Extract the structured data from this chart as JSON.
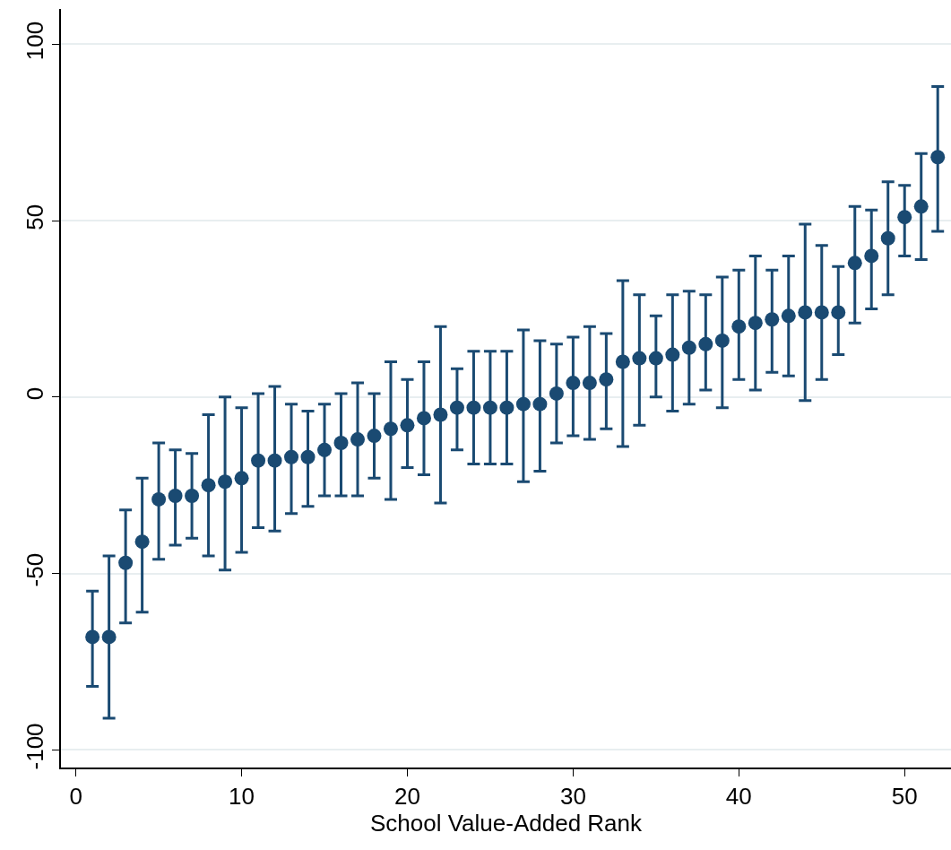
{
  "chart_data": {
    "type": "scatter",
    "xlabel": "School Value-Added Rank",
    "x": [
      1,
      2,
      3,
      4,
      5,
      6,
      7,
      8,
      9,
      10,
      11,
      12,
      13,
      14,
      15,
      16,
      17,
      18,
      19,
      20,
      21,
      22,
      23,
      24,
      25,
      26,
      27,
      28,
      29,
      30,
      31,
      32,
      33,
      34,
      35,
      36,
      37,
      38,
      39,
      40,
      41,
      42,
      43,
      44,
      45,
      46,
      47,
      48,
      49,
      50,
      51,
      52
    ],
    "values": [
      -68,
      -68,
      -47,
      -41,
      -29,
      -28,
      -28,
      -25,
      -24,
      -23,
      -18,
      -18,
      -17,
      -17,
      -15,
      -13,
      -12,
      -11,
      -9,
      -8,
      -6,
      -5,
      -3,
      -3,
      -3,
      -3,
      -2,
      -2,
      1,
      4,
      4,
      5,
      10,
      11,
      11,
      12,
      14,
      15,
      16,
      20,
      21,
      22,
      23,
      24,
      24,
      24,
      38,
      40,
      45,
      51,
      54,
      68
    ],
    "errors": [
      [
        -82,
        -55
      ],
      [
        -91,
        -45
      ],
      [
        -64,
        -32
      ],
      [
        -61,
        -23
      ],
      [
        -46,
        -13
      ],
      [
        -42,
        -15
      ],
      [
        -40,
        -16
      ],
      [
        -45,
        -5
      ],
      [
        -49,
        0
      ],
      [
        -44,
        -3
      ],
      [
        -37,
        1
      ],
      [
        -38,
        3
      ],
      [
        -33,
        -2
      ],
      [
        -31,
        -4
      ],
      [
        -28,
        -2
      ],
      [
        -28,
        1
      ],
      [
        -28,
        4
      ],
      [
        -23,
        1
      ],
      [
        -29,
        10
      ],
      [
        -20,
        5
      ],
      [
        -22,
        10
      ],
      [
        -30,
        20
      ],
      [
        -15,
        8
      ],
      [
        -19,
        13
      ],
      [
        -19,
        13
      ],
      [
        -19,
        13
      ],
      [
        -24,
        19
      ],
      [
        -21,
        16
      ],
      [
        -13,
        15
      ],
      [
        -11,
        17
      ],
      [
        -12,
        20
      ],
      [
        -9,
        18
      ],
      [
        -14,
        33
      ],
      [
        -8,
        29
      ],
      [
        0,
        23
      ],
      [
        -4,
        29
      ],
      [
        -2,
        30
      ],
      [
        2,
        29
      ],
      [
        -3,
        34
      ],
      [
        5,
        36
      ],
      [
        2,
        40
      ],
      [
        7,
        36
      ],
      [
        6,
        40
      ],
      [
        -1,
        49
      ],
      [
        5,
        43
      ],
      [
        12,
        37
      ],
      [
        21,
        54
      ],
      [
        25,
        53
      ],
      [
        29,
        61
      ],
      [
        40,
        60
      ],
      [
        39,
        69
      ],
      [
        47,
        88
      ]
    ],
    "color": "#1a4a72",
    "marker": "circle",
    "xlim": [
      -0.9,
      52.8
    ],
    "xticks": [
      0,
      10,
      20,
      30,
      40,
      50
    ],
    "ylim": [
      -105,
      110
    ],
    "yticks": [
      -100,
      -50,
      0,
      50,
      100
    ],
    "grid": "y"
  }
}
